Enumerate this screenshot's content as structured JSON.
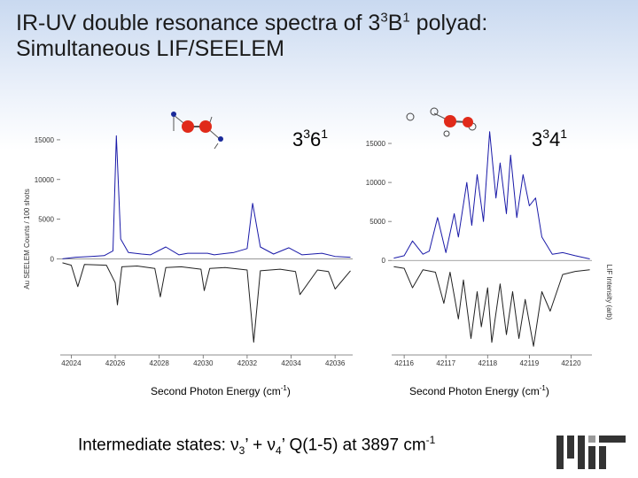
{
  "slide": {
    "title_part1": "IR-UV double resonance spectra of 3",
    "title_sup1": "3",
    "title_part2": "B",
    "title_sup2": "1",
    "title_part3": " polyad:",
    "title_line2": "Simultaneous LIF/SEELEM",
    "footer_prefix": "Intermediate states: ",
    "footer_nu": "ν",
    "footer_sub3": "3",
    "footer_plus": "’ + ",
    "footer_sub4": "4",
    "footer_q": "’  Q(1-5) at 3897 cm",
    "footer_sup": "-1",
    "logo_name": "mit-logo",
    "colors": {
      "seelem": "#1a1aa8",
      "lif": "#222222",
      "atom_red": "#e02a1a",
      "atom_blue": "#1a2a9a"
    }
  },
  "chart_data": [
    {
      "type": "line",
      "panel_label_base": "3",
      "panel_label_sup1": "3",
      "panel_label_mid": "6",
      "panel_label_sup2": "1",
      "xlabel_text": "Second Photon Energy (cm",
      "xlabel_sup": "-1",
      "xlabel_end": ")",
      "ylabel": "Au SEELEM Counts / 100 shots",
      "x_ticks": [
        42024,
        42026,
        42028,
        42030,
        42032,
        42034,
        42036
      ],
      "y_ticks": [
        0,
        5000,
        10000,
        15000
      ],
      "xlim": [
        42023.5,
        42036.8
      ],
      "ylim": [
        -12000,
        17000
      ],
      "series": [
        {
          "kind": "seelem",
          "x": [
            42023.6,
            42024.2,
            42024.9,
            42025.5,
            42025.9,
            42026.05,
            42026.25,
            42026.6,
            42027.2,
            42027.6,
            42028.3,
            42028.9,
            42029.3,
            42030.2,
            42030.5,
            42031.4,
            42032.0,
            42032.25,
            42032.6,
            42033.2,
            42033.9,
            42034.5,
            42035.4,
            42036.0,
            42036.7
          ],
          "y": [
            0,
            200,
            300,
            400,
            1000,
            15500,
            2500,
            800,
            600,
            500,
            1500,
            500,
            700,
            700,
            500,
            800,
            1300,
            7000,
            1500,
            600,
            1400,
            500,
            700,
            300,
            200
          ]
        },
        {
          "kind": "lif",
          "x": [
            42023.6,
            42024.0,
            42024.3,
            42024.6,
            42025.6,
            42026.0,
            42026.1,
            42026.3,
            42027.0,
            42027.8,
            42028.05,
            42028.3,
            42029.0,
            42029.9,
            42030.05,
            42030.3,
            42031.0,
            42032.0,
            42032.3,
            42032.6,
            42033.5,
            42034.2,
            42034.4,
            42035.2,
            42035.7,
            42036.0,
            42036.7
          ],
          "y": [
            -500,
            -800,
            -3500,
            -700,
            -800,
            -3000,
            -5800,
            -1000,
            -900,
            -1200,
            -4800,
            -1100,
            -1000,
            -1300,
            -4000,
            -1200,
            -1100,
            -1400,
            -10500,
            -1500,
            -1300,
            -1600,
            -4500,
            -1400,
            -1600,
            -3800,
            -1500
          ]
        }
      ]
    },
    {
      "type": "line",
      "panel_label_base": "3",
      "panel_label_sup1": "3",
      "panel_label_mid": "4",
      "panel_label_sup2": "1",
      "xlabel_text": "Second Photon Energy (cm",
      "xlabel_sup": "-1",
      "xlabel_end": ")",
      "ylabel": "LIF Intensity (arb)",
      "x_ticks": [
        42116,
        42117,
        42118,
        42119,
        42120
      ],
      "y_ticks": [
        0,
        5000,
        10000,
        15000
      ],
      "xlim": [
        42115.7,
        42120.5
      ],
      "ylim": [
        -12000,
        17500
      ],
      "series": [
        {
          "kind": "seelem",
          "x": [
            42115.75,
            42116.0,
            42116.2,
            42116.45,
            42116.6,
            42116.8,
            42117.0,
            42117.2,
            42117.3,
            42117.5,
            42117.62,
            42117.75,
            42117.9,
            42118.05,
            42118.2,
            42118.3,
            42118.45,
            42118.55,
            42118.7,
            42118.85,
            42119.0,
            42119.15,
            42119.3,
            42119.55,
            42119.8,
            42120.1,
            42120.45
          ],
          "y": [
            300,
            600,
            2500,
            800,
            1200,
            5500,
            1000,
            6000,
            3000,
            10000,
            4500,
            11000,
            5000,
            16500,
            8000,
            12500,
            6000,
            13500,
            5500,
            11000,
            7000,
            8000,
            3000,
            800,
            1000,
            600,
            200
          ]
        },
        {
          "kind": "lif",
          "x": [
            42115.75,
            42116.0,
            42116.2,
            42116.45,
            42116.75,
            42116.95,
            42117.1,
            42117.3,
            42117.42,
            42117.6,
            42117.75,
            42117.85,
            42118.0,
            42118.1,
            42118.3,
            42118.45,
            42118.6,
            42118.75,
            42118.9,
            42119.1,
            42119.3,
            42119.5,
            42119.8,
            42120.1,
            42120.45
          ],
          "y": [
            -800,
            -1000,
            -3500,
            -1200,
            -1500,
            -5500,
            -1500,
            -7500,
            -2500,
            -10000,
            -4000,
            -8500,
            -3500,
            -10500,
            -3000,
            -9500,
            -4000,
            -10000,
            -5000,
            -11000,
            -4000,
            -6500,
            -1800,
            -1400,
            -1200
          ]
        }
      ]
    }
  ]
}
